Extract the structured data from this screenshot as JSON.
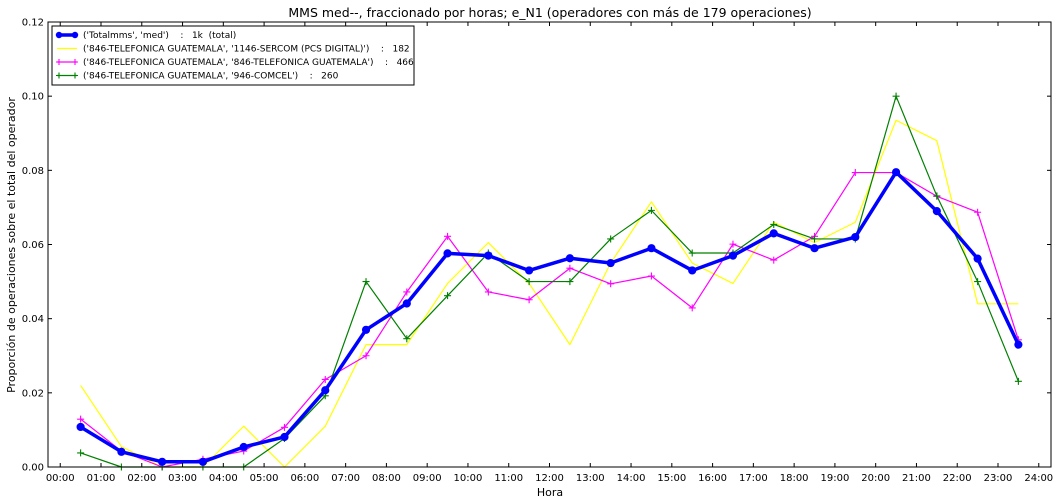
{
  "chart_data": {
    "type": "line",
    "title": "MMS med--, fraccionado por horas; e_N1 (operadores con más de 179 operaciones)",
    "xlabel": "Hora",
    "ylabel": "Proporción de operaciones sobre el total del operador",
    "xlim": [
      -0.3,
      24.3
    ],
    "ylim": [
      0,
      0.12
    ],
    "yticks": [
      0.0,
      0.02,
      0.04,
      0.06,
      0.08,
      0.1,
      0.12
    ],
    "ytick_labels": [
      "0.00",
      "0.02",
      "0.04",
      "0.06",
      "0.08",
      "0.10",
      "0.12"
    ],
    "xticks": [
      0,
      1,
      2,
      3,
      4,
      5,
      6,
      7,
      8,
      9,
      10,
      11,
      12,
      13,
      14,
      15,
      16,
      17,
      18,
      19,
      20,
      21,
      22,
      23,
      24
    ],
    "xtick_labels": [
      "00:00",
      "01:00",
      "02:00",
      "03:00",
      "04:00",
      "05:00",
      "06:00",
      "07:00",
      "08:00",
      "09:00",
      "10:00",
      "11:00",
      "12:00",
      "13:00",
      "14:00",
      "15:00",
      "16:00",
      "17:00",
      "18:00",
      "19:00",
      "20:00",
      "21:00",
      "22:00",
      "23:00",
      "24:00"
    ],
    "x": [
      0.5,
      1.5,
      2.5,
      3.5,
      4.5,
      5.5,
      6.5,
      7.5,
      8.5,
      9.5,
      10.5,
      11.5,
      12.5,
      13.5,
      14.5,
      15.5,
      16.5,
      17.5,
      18.5,
      19.5,
      20.5,
      21.5,
      22.5,
      23.5
    ],
    "grid": false,
    "legend_position": "top-left",
    "series": [
      {
        "name": "('Totalmms', 'med')    :   1k  (total)",
        "color": "#0000ff",
        "marker": "circle",
        "linewidth": "thick",
        "values": [
          0.0108,
          0.0041,
          0.0014,
          0.0014,
          0.0054,
          0.0081,
          0.0207,
          0.037,
          0.0441,
          0.0576,
          0.057,
          0.053,
          0.0563,
          0.055,
          0.059,
          0.053,
          0.057,
          0.063,
          0.059,
          0.062,
          0.0795,
          0.069,
          0.0562,
          0.033
        ]
      },
      {
        "name": "('846-TELEFONICA GUATEMALA', '1146-SERCOM (PCS DIGITAL)')    :   182",
        "color": "#ffff00",
        "marker": "none",
        "linewidth": "thin",
        "values": [
          0.022,
          0.0055,
          0.0,
          0.0,
          0.011,
          0.0,
          0.011,
          0.033,
          0.033,
          0.0495,
          0.0605,
          0.0495,
          0.033,
          0.055,
          0.0715,
          0.055,
          0.0495,
          0.066,
          0.0605,
          0.066,
          0.0935,
          0.088,
          0.044,
          0.044
        ]
      },
      {
        "name": "('846-TELEFONICA GUATEMALA', '846-TELEFONICA GUATEMALA')    :   466",
        "color": "#ff00ff",
        "marker": "plus",
        "linewidth": "thin",
        "values": [
          0.0129,
          0.0043,
          0.0,
          0.0021,
          0.0043,
          0.0107,
          0.0236,
          0.03,
          0.0472,
          0.0622,
          0.0472,
          0.0451,
          0.0536,
          0.0494,
          0.0515,
          0.0429,
          0.0601,
          0.0558,
          0.0622,
          0.0794,
          0.0794,
          0.073,
          0.0687,
          0.0343
        ]
      },
      {
        "name": "('846-TELEFONICA GUATEMALA', '946-COMCEL')    :   260",
        "color": "#008000",
        "marker": "plus",
        "linewidth": "thin",
        "values": [
          0.0038,
          0.0,
          0.0,
          0.0,
          0.0,
          0.0077,
          0.0192,
          0.05,
          0.0346,
          0.0462,
          0.0577,
          0.05,
          0.05,
          0.0615,
          0.0692,
          0.0577,
          0.0577,
          0.0654,
          0.0615,
          0.0615,
          0.1,
          0.0731,
          0.05,
          0.0231
        ]
      }
    ]
  }
}
